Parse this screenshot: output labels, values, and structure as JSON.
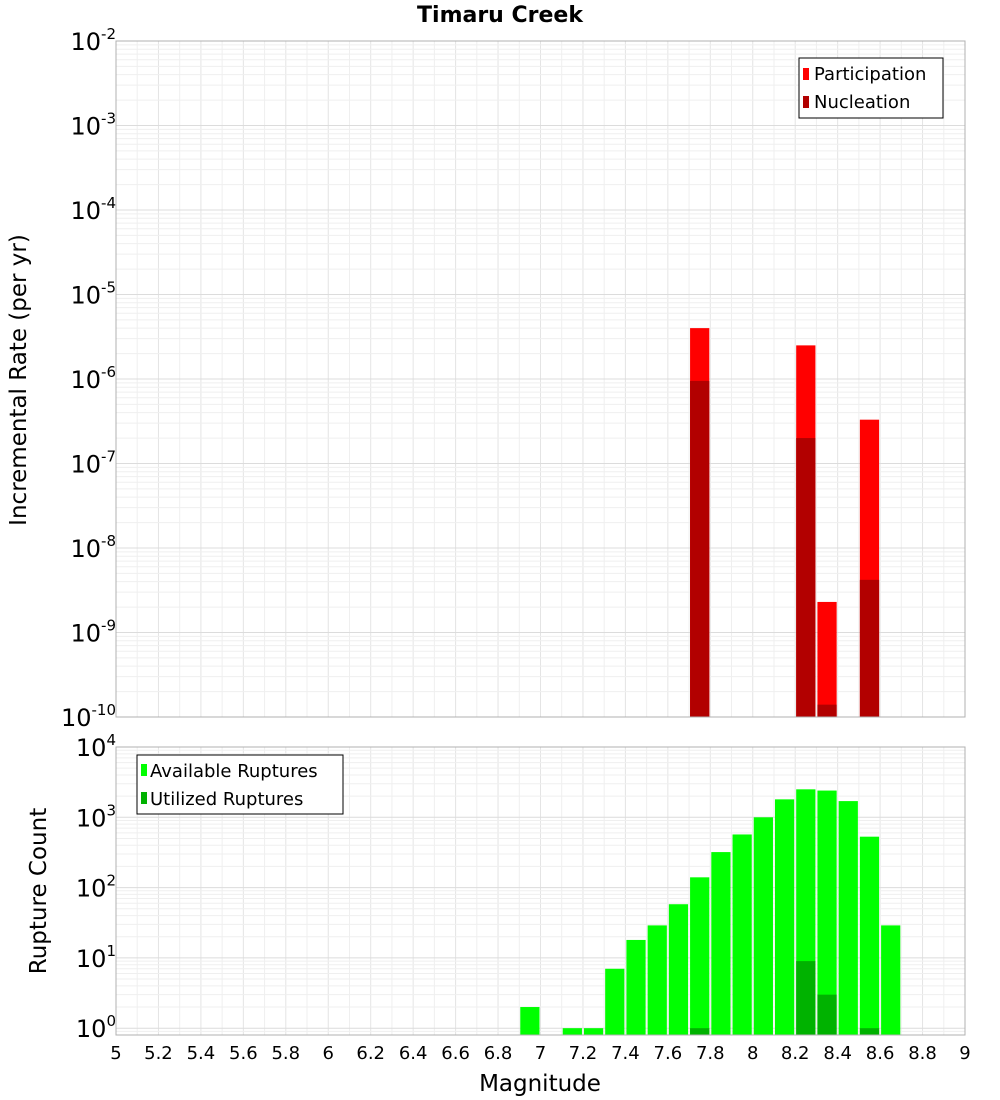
{
  "chart_data": [
    {
      "type": "bar",
      "title": "Timaru Creek",
      "ylabel": "Incremental Rate (per yr)",
      "xlabel": "",
      "xlim": [
        5,
        9
      ],
      "ylim": [
        1e-10,
        0.01
      ],
      "yscale": "log",
      "y_ticks": [
        {
          "base": "10",
          "exp": "-2"
        },
        {
          "base": "10",
          "exp": "-3"
        },
        {
          "base": "10",
          "exp": "-4"
        },
        {
          "base": "10",
          "exp": "-5"
        },
        {
          "base": "10",
          "exp": "-6"
        },
        {
          "base": "10",
          "exp": "-7"
        },
        {
          "base": "10",
          "exp": "-8"
        },
        {
          "base": "10",
          "exp": "-9"
        },
        {
          "base": "10",
          "exp": "-10"
        }
      ],
      "grid": true,
      "legend_position": "top-right",
      "bin_width": 0.1,
      "series": [
        {
          "name": "Participation",
          "color": "#ff0000",
          "points": [
            [
              7.75,
              4e-06
            ],
            [
              8.25,
              2.5e-06
            ],
            [
              8.35,
              2.3e-09
            ],
            [
              8.55,
              3.3e-07
            ]
          ]
        },
        {
          "name": "Nucleation",
          "color": "#b20000",
          "points": [
            [
              7.75,
              9.5e-07
            ],
            [
              8.25,
              2e-07
            ],
            [
              8.35,
              1.4e-10
            ],
            [
              8.55,
              4.2e-09
            ]
          ]
        }
      ]
    },
    {
      "type": "bar",
      "title": "",
      "ylabel": "Rupture Count",
      "xlabel": "Magnitude",
      "xlim": [
        5,
        9
      ],
      "x_ticks": [
        "5",
        "5.2",
        "5.4",
        "5.6",
        "5.8",
        "6",
        "6.2",
        "6.4",
        "6.6",
        "6.8",
        "7",
        "7.2",
        "7.4",
        "7.6",
        "7.8",
        "8",
        "8.2",
        "8.4",
        "8.6",
        "8.8",
        "9"
      ],
      "ylim": [
        0.8,
        10000
      ],
      "yscale": "log",
      "y_ticks": [
        {
          "base": "10",
          "exp": "4",
          "value": 10000
        },
        {
          "base": "10",
          "exp": "3",
          "value": 1000
        },
        {
          "base": "10",
          "exp": "2",
          "value": 100
        },
        {
          "base": "10",
          "exp": "1",
          "value": 10
        },
        {
          "base": "10",
          "exp": "0",
          "value": 1
        }
      ],
      "grid": true,
      "legend_position": "top-left",
      "bin_width": 0.1,
      "series": [
        {
          "name": "Available Ruptures",
          "color": "#00ff00",
          "points": [
            [
              6.95,
              2
            ],
            [
              7.15,
              1
            ],
            [
              7.25,
              1
            ],
            [
              7.35,
              7
            ],
            [
              7.45,
              18
            ],
            [
              7.55,
              29
            ],
            [
              7.65,
              58
            ],
            [
              7.75,
              140
            ],
            [
              7.85,
              320
            ],
            [
              7.95,
              570
            ],
            [
              8.05,
              1000
            ],
            [
              8.15,
              1800
            ],
            [
              8.25,
              2500
            ],
            [
              8.35,
              2400
            ],
            [
              8.45,
              1700
            ],
            [
              8.55,
              530
            ],
            [
              8.65,
              29
            ]
          ]
        },
        {
          "name": "Utilized Ruptures",
          "color": "#00b200",
          "points": [
            [
              7.75,
              1
            ],
            [
              8.25,
              9
            ],
            [
              8.35,
              3
            ],
            [
              8.55,
              1
            ]
          ]
        }
      ]
    }
  ]
}
